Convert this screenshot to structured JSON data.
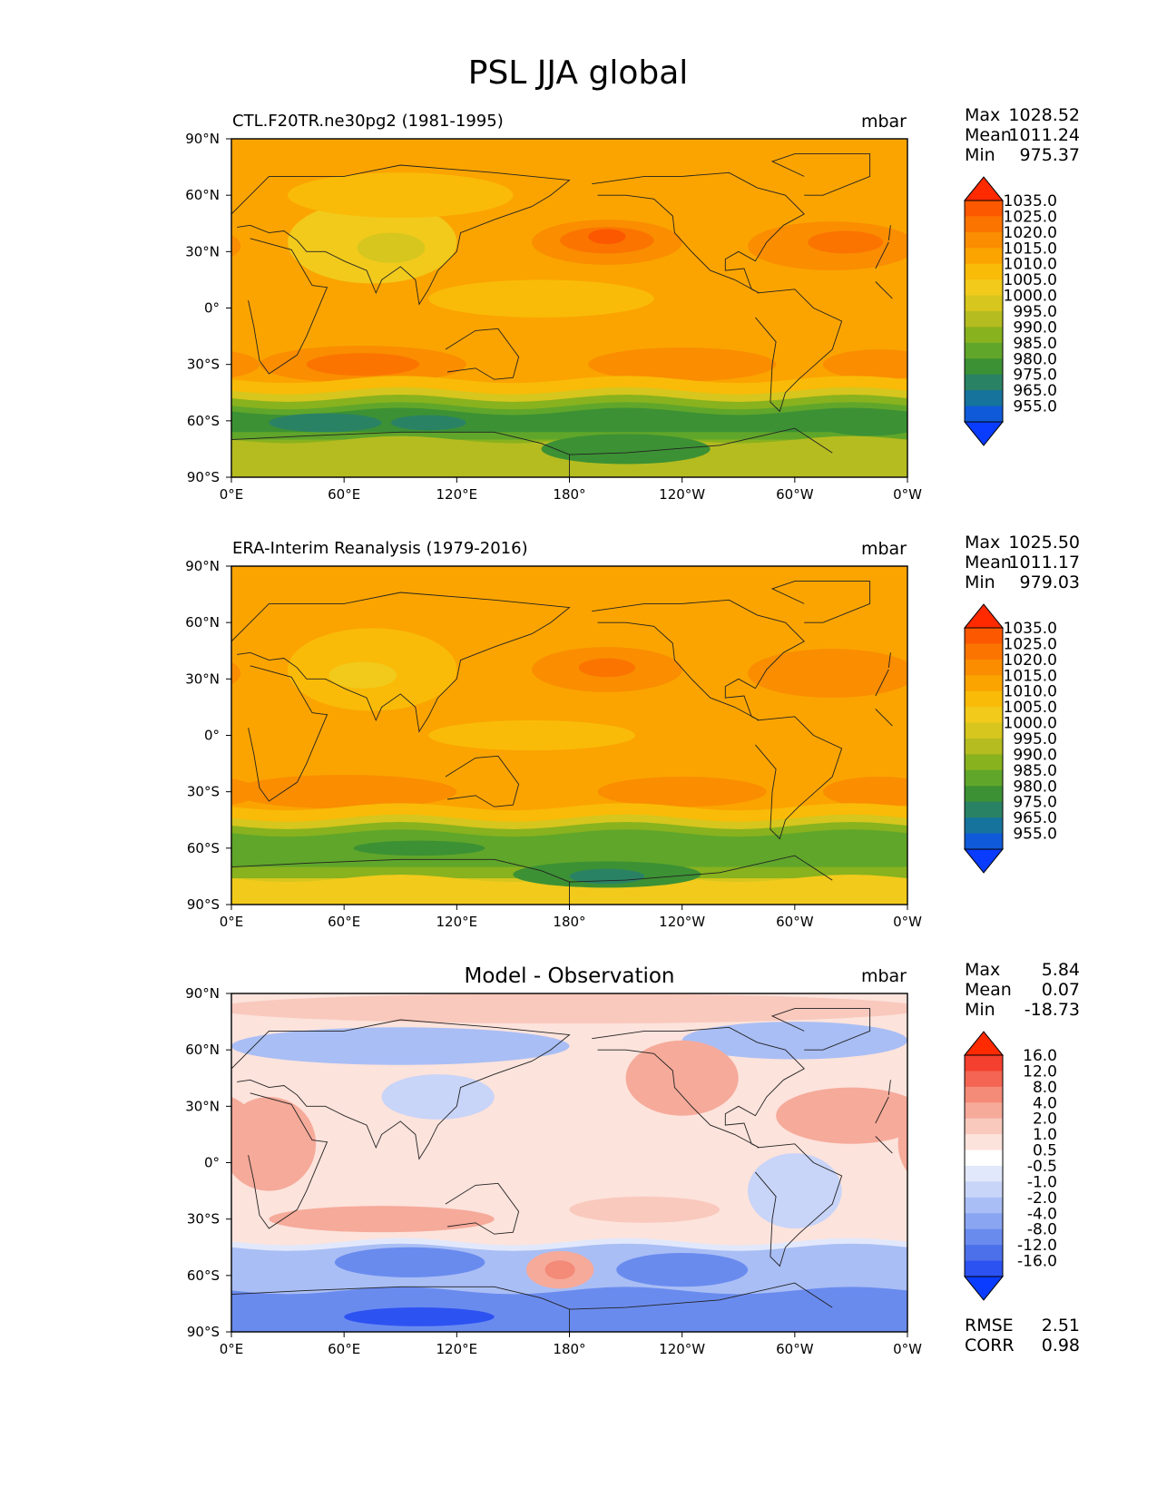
{
  "title": "PSL JJA global",
  "units": "mbar",
  "xticks": [
    "0°E",
    "60°E",
    "120°E",
    "180°",
    "120°W",
    "60°W",
    "0°W"
  ],
  "yticks": [
    "90°N",
    "60°N",
    "30°N",
    "0°",
    "30°S",
    "60°S",
    "90°S"
  ],
  "stat_labels": {
    "max": "Max",
    "mean": "Mean",
    "min": "Min",
    "rmse": "RMSE",
    "corr": "CORR"
  },
  "panels": [
    {
      "id": "test",
      "left_title": "CTL.F20TR.ne30pg2 (1981-1995)",
      "center_title": "",
      "right_title": "mbar",
      "stats": {
        "max": "1028.52",
        "mean": "1011.24",
        "min": "975.37"
      },
      "extra_stats": null,
      "colorbar": {
        "levels": [
          "1035.0",
          "1025.0",
          "1020.0",
          "1015.0",
          "1010.0",
          "1005.0",
          "1000.0",
          "995.0",
          "990.0",
          "985.0",
          "980.0",
          "975.0",
          "965.0",
          "955.0"
        ],
        "colors": [
          "#ff2a00",
          "#fc5800",
          "#fb7400",
          "#fa8d00",
          "#fba400",
          "#f9bb08",
          "#f1ca1c",
          "#d6c61d",
          "#b5bc20",
          "#88b21e",
          "#60a62a",
          "#3c9134",
          "#2a8265",
          "#16739c",
          "#0f5ad8",
          "#0a3cff"
        ]
      }
    },
    {
      "id": "reference",
      "left_title": "ERA-Interim Reanalysis (1979-2016)",
      "center_title": "",
      "right_title": "mbar",
      "stats": {
        "max": "1025.50",
        "mean": "1011.17",
        "min": "979.03"
      },
      "extra_stats": null,
      "colorbar": {
        "levels": [
          "1035.0",
          "1025.0",
          "1020.0",
          "1015.0",
          "1010.0",
          "1005.0",
          "1000.0",
          "995.0",
          "990.0",
          "985.0",
          "980.0",
          "975.0",
          "965.0",
          "955.0"
        ],
        "colors": [
          "#ff2a00",
          "#fc5800",
          "#fb7400",
          "#fa8d00",
          "#fba400",
          "#f9bb08",
          "#f1ca1c",
          "#d6c61d",
          "#b5bc20",
          "#88b21e",
          "#60a62a",
          "#3c9134",
          "#2a8265",
          "#16739c",
          "#0f5ad8",
          "#0a3cff"
        ]
      }
    },
    {
      "id": "diff",
      "left_title": "",
      "center_title": "Model - Observation",
      "right_title": "mbar",
      "stats": {
        "max": "5.84",
        "mean": "0.07",
        "min": "-18.73"
      },
      "extra_stats": {
        "rmse": "2.51",
        "corr": "0.98"
      },
      "colorbar": {
        "levels": [
          "16.0",
          "12.0",
          "8.0",
          "4.0",
          "2.0",
          "1.0",
          "0.5",
          "-0.5",
          "-1.0",
          "-2.0",
          "-4.0",
          "-8.0",
          "-12.0",
          "-16.0"
        ],
        "colors": [
          "#ff2a00",
          "#f5402f",
          "#f36552",
          "#f48a78",
          "#f6aa9a",
          "#f9c9bd",
          "#fce3dc",
          "#ffffff",
          "#e2e8fb",
          "#c8d4f8",
          "#a9bef5",
          "#8aa5f2",
          "#6a8bee",
          "#4c70ea",
          "#2d52f2",
          "#0a3cff"
        ]
      }
    }
  ],
  "map_fields": [
    {
      "background": "#fba400",
      "blobs": [
        {
          "lon": 75,
          "lat": 35,
          "rlon": 45,
          "rlat": 22,
          "color": "#f1ca1c"
        },
        {
          "lon": 90,
          "lat": 60,
          "rlon": 60,
          "rlat": 12,
          "color": "#f9bb08"
        },
        {
          "lon": 85,
          "lat": 32,
          "rlon": 18,
          "rlat": 8,
          "color": "#d6c61d"
        },
        {
          "lon": 165,
          "lat": 5,
          "rlon": 60,
          "rlat": 10,
          "color": "#f9bb08"
        },
        {
          "lon": 200,
          "lat": 35,
          "rlon": 40,
          "rlat": 12,
          "color": "#fa8d00"
        },
        {
          "lon": 200,
          "lat": 36,
          "rlon": 25,
          "rlat": 7,
          "color": "#fb7400"
        },
        {
          "lon": 200,
          "lat": 38,
          "rlon": 10,
          "rlat": 4,
          "color": "#fc5800"
        },
        {
          "lon": 320,
          "lat": 33,
          "rlon": 45,
          "rlat": 13,
          "color": "#fa8d00"
        },
        {
          "lon": 327,
          "lat": 35,
          "rlon": 20,
          "rlat": 6,
          "color": "#fb7400"
        },
        {
          "lon": 70,
          "lat": -30,
          "rlon": 55,
          "rlat": 10,
          "color": "#fa8d00"
        },
        {
          "lon": 70,
          "lat": -30,
          "rlon": 30,
          "rlat": 6,
          "color": "#fb7400"
        },
        {
          "lon": 240,
          "lat": -30,
          "rlon": 50,
          "rlat": 9,
          "color": "#fa8d00"
        },
        {
          "lon": 345,
          "lat": -30,
          "rlon": 30,
          "rlat": 8,
          "color": "#fa8d00"
        }
      ],
      "bands": [
        {
          "lat0": -38,
          "lat1": -90,
          "color": "#f9bb08"
        },
        {
          "lat0": -44,
          "lat1": -90,
          "color": "#d6c61d"
        },
        {
          "lat0": -48,
          "lat1": -90,
          "color": "#88b21e"
        },
        {
          "lat0": -52,
          "lat1": -70,
          "color": "#60a62a"
        },
        {
          "lat0": -55,
          "lat1": -66,
          "color": "#3c9134"
        },
        {
          "lat0": -70,
          "lat1": -90,
          "color": "#b5bc20"
        }
      ],
      "blobs2": [
        {
          "lon": 50,
          "lat": -61,
          "rlon": 30,
          "rlat": 5,
          "color": "#2a8265"
        },
        {
          "lon": 105,
          "lat": -61,
          "rlon": 20,
          "rlat": 4,
          "color": "#2a8265"
        },
        {
          "lon": 210,
          "lat": -75,
          "rlon": 45,
          "rlat": 8,
          "color": "#3c9134"
        },
        {
          "lon": 340,
          "lat": -63,
          "rlon": 25,
          "rlat": 5,
          "color": "#3c9134"
        }
      ]
    },
    {
      "background": "#fba400",
      "blobs": [
        {
          "lon": 75,
          "lat": 35,
          "rlon": 45,
          "rlat": 22,
          "color": "#f9bb08"
        },
        {
          "lon": 70,
          "lat": 32,
          "rlon": 18,
          "rlat": 7,
          "color": "#f1ca1c"
        },
        {
          "lon": 160,
          "lat": 0,
          "rlon": 55,
          "rlat": 8,
          "color": "#f9bb08"
        },
        {
          "lon": 200,
          "lat": 35,
          "rlon": 40,
          "rlat": 12,
          "color": "#fa8d00"
        },
        {
          "lon": 200,
          "lat": 36,
          "rlon": 15,
          "rlat": 5,
          "color": "#fb7400"
        },
        {
          "lon": 320,
          "lat": 33,
          "rlon": 45,
          "rlat": 13,
          "color": "#fa8d00"
        },
        {
          "lon": 60,
          "lat": -30,
          "rlon": 60,
          "rlat": 9,
          "color": "#fa8d00"
        },
        {
          "lon": 240,
          "lat": -30,
          "rlon": 45,
          "rlat": 8,
          "color": "#fa8d00"
        },
        {
          "lon": 345,
          "lat": -30,
          "rlon": 30,
          "rlat": 8,
          "color": "#fa8d00"
        }
      ],
      "bands": [
        {
          "lat0": -38,
          "lat1": -90,
          "color": "#f9bb08"
        },
        {
          "lat0": -44,
          "lat1": -90,
          "color": "#d6c61d"
        },
        {
          "lat0": -48,
          "lat1": -76,
          "color": "#88b21e"
        },
        {
          "lat0": -52,
          "lat1": -70,
          "color": "#60a62a"
        },
        {
          "lat0": -76,
          "lat1": -90,
          "color": "#f1ca1c"
        }
      ],
      "blobs2": [
        {
          "lon": 100,
          "lat": -60,
          "rlon": 35,
          "rlat": 4,
          "color": "#3c9134"
        },
        {
          "lon": 200,
          "lat": -74,
          "rlon": 50,
          "rlat": 7,
          "color": "#3c9134"
        },
        {
          "lon": 200,
          "lat": -75,
          "rlon": 20,
          "rlat": 4,
          "color": "#2a8265"
        }
      ]
    },
    {
      "background": "#fce3dc",
      "blobs": [
        {
          "lon": 180,
          "lat": 82,
          "rlon": 190,
          "rlat": 8,
          "color": "#f9c9bd"
        },
        {
          "lon": 90,
          "lat": 62,
          "rlon": 90,
          "rlat": 10,
          "color": "#a9bef5"
        },
        {
          "lon": 300,
          "lat": 65,
          "rlon": 60,
          "rlat": 10,
          "color": "#a9bef5"
        },
        {
          "lon": 110,
          "lat": 35,
          "rlon": 30,
          "rlat": 12,
          "color": "#c8d4f8"
        },
        {
          "lon": 240,
          "lat": 45,
          "rlon": 30,
          "rlat": 20,
          "color": "#f6aa9a"
        },
        {
          "lon": 330,
          "lat": 25,
          "rlon": 40,
          "rlat": 15,
          "color": "#f6aa9a"
        },
        {
          "lon": 20,
          "lat": 10,
          "rlon": 25,
          "rlat": 25,
          "color": "#f6aa9a"
        },
        {
          "lon": 80,
          "lat": -30,
          "rlon": 60,
          "rlat": 7,
          "color": "#f6aa9a"
        },
        {
          "lon": 220,
          "lat": -25,
          "rlon": 40,
          "rlat": 7,
          "color": "#f9c9bd"
        },
        {
          "lon": 300,
          "lat": -15,
          "rlon": 25,
          "rlat": 20,
          "color": "#c8d4f8"
        }
      ],
      "bands": [
        {
          "lat0": -42,
          "lat1": -90,
          "color": "#e2e8fb"
        },
        {
          "lat0": -45,
          "lat1": -90,
          "color": "#a9bef5"
        },
        {
          "lat0": -68,
          "lat1": -90,
          "color": "#6a8bee"
        }
      ],
      "blobs2": [
        {
          "lon": 95,
          "lat": -53,
          "rlon": 40,
          "rlat": 8,
          "color": "#6a8bee"
        },
        {
          "lon": 175,
          "lat": -57,
          "rlon": 18,
          "rlat": 10,
          "color": "#f6aa9a"
        },
        {
          "lon": 175,
          "lat": -57,
          "rlon": 8,
          "rlat": 5,
          "color": "#f48a78"
        },
        {
          "lon": 240,
          "lat": -57,
          "rlon": 35,
          "rlat": 9,
          "color": "#6a8bee"
        },
        {
          "lon": 100,
          "lat": -82,
          "rlon": 40,
          "rlat": 5,
          "color": "#2d52f2"
        }
      ]
    }
  ],
  "continent_outlines": [
    {
      "name": "Africa",
      "points": [
        [
          -17,
          21
        ],
        [
          -10,
          35
        ],
        [
          10,
          37
        ],
        [
          32,
          31
        ],
        [
          43,
          12
        ],
        [
          51,
          11
        ],
        [
          40,
          -15
        ],
        [
          35,
          -25
        ],
        [
          20,
          -35
        ],
        [
          15,
          -28
        ],
        [
          12,
          -10
        ],
        [
          9,
          4
        ],
        [
          -8,
          5
        ],
        [
          -17,
          14
        ]
      ]
    },
    {
      "name": "Europe-Asia",
      "points": [
        [
          -10,
          36
        ],
        [
          -9,
          44
        ],
        [
          0,
          50
        ],
        [
          8,
          58
        ],
        [
          20,
          70
        ],
        [
          60,
          70
        ],
        [
          90,
          76
        ],
        [
          140,
          72
        ],
        [
          180,
          68
        ],
        [
          170,
          60
        ],
        [
          160,
          54
        ],
        [
          140,
          47
        ],
        [
          122,
          40
        ],
        [
          120,
          30
        ],
        [
          110,
          20
        ],
        [
          105,
          10
        ],
        [
          100,
          2
        ],
        [
          98,
          15
        ],
        [
          90,
          22
        ],
        [
          80,
          15
        ],
        [
          77,
          8
        ],
        [
          72,
          20
        ],
        [
          60,
          25
        ],
        [
          56,
          27
        ],
        [
          50,
          30
        ],
        [
          40,
          30
        ],
        [
          35,
          36
        ],
        [
          28,
          41
        ],
        [
          20,
          40
        ],
        [
          10,
          44
        ],
        [
          3,
          43
        ]
      ]
    },
    {
      "name": "Australia",
      "points": [
        [
          114,
          -22
        ],
        [
          130,
          -12
        ],
        [
          142,
          -11
        ],
        [
          153,
          -26
        ],
        [
          150,
          -37
        ],
        [
          140,
          -38
        ],
        [
          130,
          -32
        ],
        [
          115,
          -34
        ]
      ]
    },
    {
      "name": "North America",
      "points": [
        [
          -168,
          66
        ],
        [
          -140,
          70
        ],
        [
          -120,
          70
        ],
        [
          -95,
          72
        ],
        [
          -80,
          64
        ],
        [
          -65,
          60
        ],
        [
          -55,
          50
        ],
        [
          -66,
          44
        ],
        [
          -75,
          35
        ],
        [
          -81,
          25
        ],
        [
          -90,
          30
        ],
        [
          -97,
          26
        ],
        [
          -97,
          20
        ],
        [
          -87,
          21
        ],
        [
          -83,
          10
        ],
        [
          -79,
          8
        ],
        [
          -92,
          15
        ],
        [
          -105,
          20
        ],
        [
          -115,
          30
        ],
        [
          -124,
          40
        ],
        [
          -125,
          49
        ],
        [
          -135,
          58
        ],
        [
          -150,
          60
        ],
        [
          -165,
          60
        ]
      ]
    },
    {
      "name": "South America",
      "points": [
        [
          -80,
          8
        ],
        [
          -60,
          10
        ],
        [
          -50,
          0
        ],
        [
          -35,
          -7
        ],
        [
          -40,
          -22
        ],
        [
          -58,
          -38
        ],
        [
          -65,
          -45
        ],
        [
          -68,
          -55
        ],
        [
          -73,
          -50
        ],
        [
          -72,
          -30
        ],
        [
          -70,
          -18
        ],
        [
          -81,
          -5
        ]
      ]
    },
    {
      "name": "Greenland",
      "points": [
        [
          -55,
          60
        ],
        [
          -45,
          60
        ],
        [
          -20,
          70
        ],
        [
          -20,
          82
        ],
        [
          -60,
          82
        ],
        [
          -72,
          78
        ],
        [
          -55,
          70
        ]
      ]
    },
    {
      "name": "Antarctica",
      "points": [
        [
          -180,
          -78
        ],
        [
          -150,
          -77
        ],
        [
          -100,
          -73
        ],
        [
          -60,
          -64
        ],
        [
          -40,
          -77
        ],
        [
          0,
          -70
        ],
        [
          40,
          -68
        ],
        [
          90,
          -66
        ],
        [
          140,
          -66
        ],
        [
          165,
          -72
        ],
        [
          180,
          -78
        ],
        [
          180,
          -90
        ],
        [
          -180,
          -90
        ]
      ]
    }
  ]
}
